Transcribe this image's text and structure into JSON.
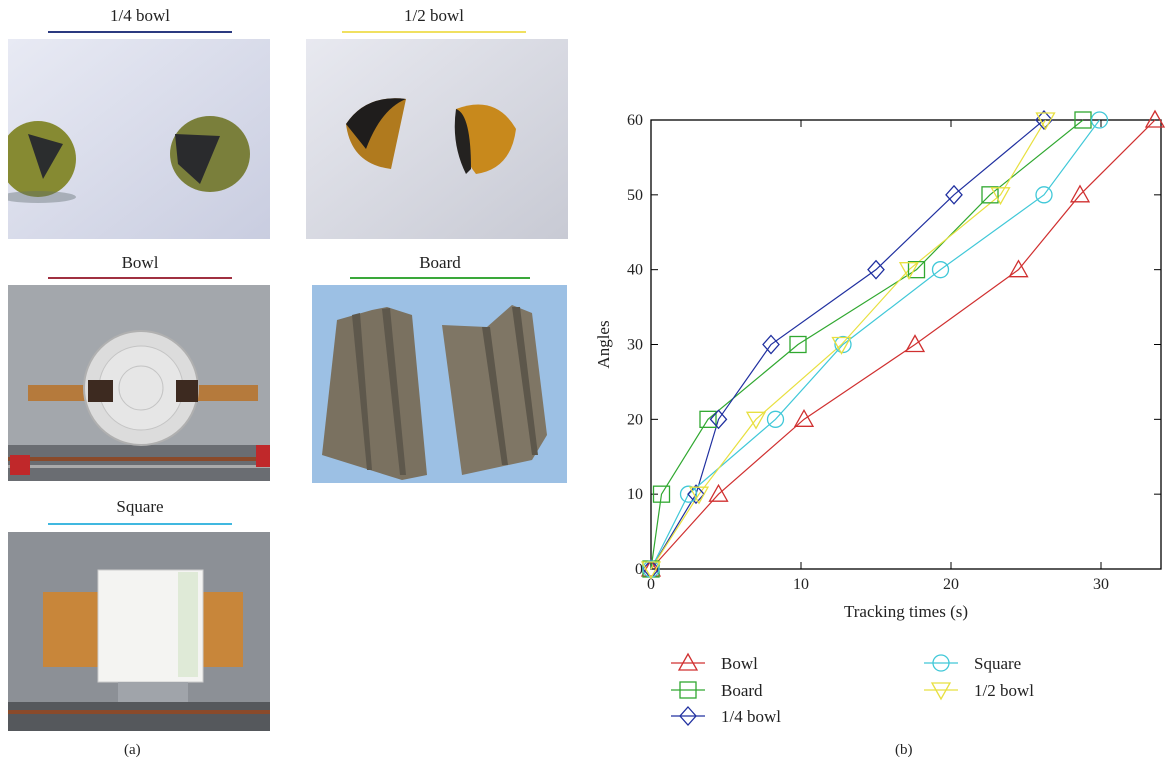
{
  "panels": {
    "a_label": "(a)",
    "b_label": "(b)"
  },
  "photos": {
    "quarter_bowl": {
      "title": "1/4 bowl",
      "color": "#2b3a80"
    },
    "half_bowl": {
      "title": "1/2 bowl",
      "color": "#f0e060"
    },
    "bowl": {
      "title": "Bowl",
      "color": "#a03040"
    },
    "board": {
      "title": "Board",
      "color": "#3aa83a"
    },
    "square": {
      "title": "Square",
      "color": "#40b8e0"
    }
  },
  "chart_data": {
    "type": "line",
    "xlabel": "Tracking times (s)",
    "ylabel": "Angles",
    "xlim": [
      0,
      34
    ],
    "ylim": [
      0,
      60
    ],
    "xticks": [
      0,
      10,
      20,
      30
    ],
    "yticks": [
      0,
      10,
      20,
      30,
      40,
      50,
      60
    ],
    "grid": false,
    "legend_position": "bottom",
    "series": [
      {
        "name": "Bowl",
        "marker": "triangle-up",
        "color": "#d03030",
        "x": [
          0,
          4.5,
          10.2,
          17.6,
          24.5,
          28.6,
          33.6
        ],
        "y": [
          0,
          10,
          20,
          30,
          40,
          50,
          60
        ]
      },
      {
        "name": "Board",
        "marker": "square",
        "color": "#30a830",
        "x": [
          0,
          0.7,
          3.8,
          9.8,
          17.7,
          22.6,
          28.8
        ],
        "y": [
          0,
          10,
          20,
          30,
          40,
          50,
          60
        ]
      },
      {
        "name": "1/4 bowl",
        "marker": "diamond",
        "color": "#2030a0",
        "x": [
          0,
          3.0,
          4.5,
          8.0,
          15.0,
          20.2,
          26.2
        ],
        "y": [
          0,
          10,
          20,
          30,
          40,
          50,
          60
        ]
      },
      {
        "name": "Square",
        "marker": "circle",
        "color": "#40c8d8",
        "x": [
          0,
          2.5,
          8.3,
          12.8,
          19.3,
          26.2,
          29.9
        ],
        "y": [
          0,
          10,
          20,
          30,
          40,
          50,
          60
        ]
      },
      {
        "name": "1/2 bowl",
        "marker": "triangle-down",
        "color": "#e8e040",
        "x": [
          0,
          3.2,
          7.0,
          12.7,
          17.2,
          23.3,
          26.3
        ],
        "y": [
          0,
          10,
          20,
          30,
          40,
          50,
          60
        ]
      }
    ]
  }
}
